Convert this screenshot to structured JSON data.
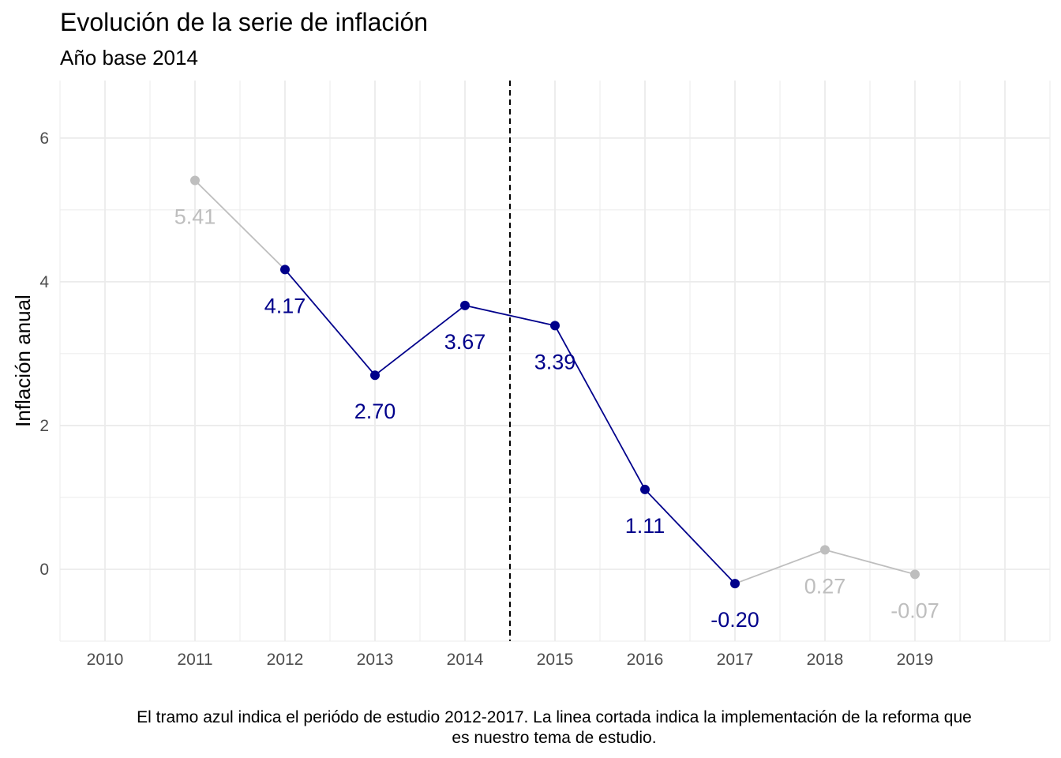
{
  "chart_data": {
    "type": "line",
    "title": "Evolución de la serie de inflación",
    "subtitle": "Año base 2014",
    "ylabel": "Inflación anual",
    "xlabel": "",
    "caption": "El tramo azul indica el periódo de estudio 2012-2017. La linea cortada indica la implementación de la reforma que es nuestro tema de estudio.",
    "x_ticks": [
      "2010",
      "2011",
      "2012",
      "2013",
      "2014",
      "2015",
      "2016",
      "2017",
      "2018",
      "2019"
    ],
    "y_ticks": [
      0,
      2,
      4,
      6
    ],
    "xlim": [
      2009.5,
      2020.5
    ],
    "ylim": [
      -1.0,
      6.8
    ],
    "grid": true,
    "vline": {
      "x": 2014.5,
      "style": "dashed"
    },
    "series": [
      {
        "x": [
          2011,
          2012,
          2013,
          2014,
          2015,
          2016,
          2017,
          2018,
          2019
        ],
        "values": [
          5.41,
          4.17,
          2.7,
          3.67,
          3.39,
          1.11,
          -0.2,
          0.27,
          -0.07
        ],
        "labels": [
          "5.41",
          "4.17",
          "2.70",
          "3.67",
          "3.39",
          "1.11",
          "-0.20",
          "0.27",
          "-0.07"
        ]
      }
    ],
    "highlight_range": [
      2012,
      2017
    ],
    "colors": {
      "highlight": "#00008b",
      "other": "#bebebe",
      "grid": "#ebebeb",
      "vline": "#000000"
    }
  }
}
